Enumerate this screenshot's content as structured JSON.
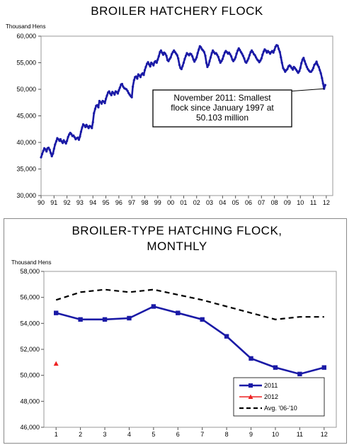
{
  "chart_data": [
    {
      "type": "line",
      "title": "BROILER HATCHERY FLOCK",
      "ylabel": "Thousand Hens",
      "ylim": [
        30000,
        60000
      ],
      "yticks": [
        "30,000",
        "35,000",
        "40,000",
        "45,000",
        "50,000",
        "55,000",
        "60,000"
      ],
      "yticks_values": [
        30000,
        35000,
        40000,
        45000,
        50000,
        55000,
        60000
      ],
      "xticks": [
        "90",
        "91",
        "92",
        "93",
        "94",
        "95",
        "96",
        "97",
        "98",
        "99",
        "00",
        "01",
        "02",
        "03",
        "04",
        "05",
        "06",
        "07",
        "08",
        "09",
        "10",
        "11",
        "12"
      ],
      "xlim": [
        1990,
        2012.5
      ],
      "grid": false,
      "annotation": {
        "lines": [
          "November 2011: Smallest",
          "flock since January 1997 at",
          "50.103 million"
        ],
        "points_to": [
          2011.83,
          50103
        ]
      },
      "series": [
        {
          "color": "#1a1aa6",
          "x": [
            1990.0,
            1990.08,
            1990.17,
            1990.25,
            1990.33,
            1990.42,
            1990.5,
            1990.58,
            1990.67,
            1990.75,
            1990.83,
            1990.92,
            1991.0,
            1991.08,
            1991.17,
            1991.25,
            1991.33,
            1991.42,
            1991.5,
            1991.58,
            1991.67,
            1991.75,
            1991.83,
            1991.92,
            1992.0,
            1992.08,
            1992.17,
            1992.25,
            1992.33,
            1992.42,
            1992.5,
            1992.58,
            1992.67,
            1992.75,
            1992.83,
            1992.92,
            1993.0,
            1993.08,
            1993.17,
            1993.25,
            1993.33,
            1993.42,
            1993.5,
            1993.58,
            1993.67,
            1993.75,
            1993.83,
            1993.92,
            1994.0,
            1994.08,
            1994.17,
            1994.25,
            1994.33,
            1994.42,
            1994.5,
            1994.58,
            1994.67,
            1994.75,
            1994.83,
            1994.92,
            1995.0,
            1995.08,
            1995.17,
            1995.25,
            1995.33,
            1995.42,
            1995.5,
            1995.58,
            1995.67,
            1995.75,
            1995.83,
            1995.92,
            1996.0,
            1996.08,
            1996.17,
            1996.25,
            1996.33,
            1996.42,
            1996.5,
            1996.58,
            1996.67,
            1996.75,
            1996.83,
            1996.92,
            1997.0,
            1997.08,
            1997.17,
            1997.25,
            1997.33,
            1997.42,
            1997.5,
            1997.58,
            1997.67,
            1997.75,
            1997.83,
            1997.92,
            1998.0,
            1998.08,
            1998.17,
            1998.25,
            1998.33,
            1998.42,
            1998.5,
            1998.58,
            1998.67,
            1998.75,
            1998.83,
            1998.92,
            1999.0,
            1999.08,
            1999.17,
            1999.25,
            1999.33,
            1999.42,
            1999.5,
            1999.58,
            1999.67,
            1999.75,
            1999.83,
            1999.92,
            2000.0,
            2000.08,
            2000.17,
            2000.25,
            2000.33,
            2000.42,
            2000.5,
            2000.58,
            2000.67,
            2000.75,
            2000.83,
            2000.92,
            2001.0,
            2001.08,
            2001.17,
            2001.25,
            2001.33,
            2001.42,
            2001.5,
            2001.58,
            2001.67,
            2001.75,
            2001.83,
            2001.92,
            2002.0,
            2002.08,
            2002.17,
            2002.25,
            2002.33,
            2002.42,
            2002.5,
            2002.58,
            2002.67,
            2002.75,
            2002.83,
            2002.92,
            2003.0,
            2003.08,
            2003.17,
            2003.25,
            2003.33,
            2003.42,
            2003.5,
            2003.58,
            2003.67,
            2003.75,
            2003.83,
            2003.92,
            2004.0,
            2004.08,
            2004.17,
            2004.25,
            2004.33,
            2004.42,
            2004.5,
            2004.58,
            2004.67,
            2004.75,
            2004.83,
            2004.92,
            2005.0,
            2005.08,
            2005.17,
            2005.25,
            2005.33,
            2005.42,
            2005.5,
            2005.58,
            2005.67,
            2005.75,
            2005.83,
            2005.92,
            2006.0,
            2006.08,
            2006.17,
            2006.25,
            2006.33,
            2006.42,
            2006.5,
            2006.58,
            2006.67,
            2006.75,
            2006.83,
            2006.92,
            2007.0,
            2007.08,
            2007.17,
            2007.25,
            2007.33,
            2007.42,
            2007.5,
            2007.58,
            2007.67,
            2007.75,
            2007.83,
            2007.92,
            2008.0,
            2008.08,
            2008.17,
            2008.25,
            2008.33,
            2008.42,
            2008.5,
            2008.58,
            2008.67,
            2008.75,
            2008.83,
            2008.92,
            2009.0,
            2009.08,
            2009.17,
            2009.25,
            2009.33,
            2009.42,
            2009.5,
            2009.58,
            2009.67,
            2009.75,
            2009.83,
            2009.92,
            2010.0,
            2010.08,
            2010.17,
            2010.25,
            2010.33,
            2010.42,
            2010.5,
            2010.58,
            2010.67,
            2010.75,
            2010.83,
            2010.92,
            2011.0,
            2011.08,
            2011.17,
            2011.25,
            2011.33,
            2011.42,
            2011.5,
            2011.58,
            2011.67,
            2011.75,
            2011.83,
            2011.92
          ],
          "y": [
            37200,
            37800,
            38400,
            38900,
            38700,
            38300,
            38900,
            39000,
            38600,
            38000,
            37400,
            37900,
            38800,
            39600,
            40200,
            40800,
            40600,
            40300,
            40600,
            40200,
            39900,
            40400,
            40100,
            39800,
            40300,
            41000,
            41500,
            41800,
            41600,
            41200,
            41300,
            41000,
            40600,
            40800,
            40900,
            40500,
            41100,
            42000,
            42800,
            43400,
            43200,
            42900,
            43300,
            43000,
            42700,
            43100,
            43000,
            42700,
            43800,
            45500,
            46300,
            46900,
            47000,
            46600,
            47800,
            47600,
            47300,
            47800,
            47700,
            47400,
            48200,
            48800,
            49400,
            49600,
            49200,
            48900,
            49500,
            49300,
            49000,
            49600,
            49500,
            49200,
            49800,
            50300,
            50900,
            51000,
            50500,
            50200,
            50100,
            50000,
            49700,
            49300,
            49000,
            48700,
            48500,
            50500,
            51700,
            52300,
            52400,
            52000,
            52800,
            52600,
            52300,
            52800,
            53000,
            52700,
            53600,
            54200,
            54800,
            55100,
            54700,
            54300,
            55000,
            54800,
            54500,
            55100,
            55300,
            55000,
            55600,
            56200,
            57000,
            57300,
            56900,
            56500,
            56900,
            56700,
            56300,
            55500,
            55300,
            55700,
            56000,
            56600,
            57000,
            57300,
            57000,
            56700,
            56400,
            55800,
            54600,
            54000,
            53800,
            54400,
            55000,
            55700,
            56300,
            56800,
            56600,
            56400,
            56700,
            56600,
            56200,
            55600,
            55200,
            55600,
            56000,
            56800,
            57500,
            58100,
            57900,
            57500,
            57300,
            57000,
            56300,
            55000,
            54200,
            54600,
            55300,
            56000,
            56800,
            57300,
            57000,
            56700,
            56800,
            56500,
            56100,
            55500,
            55000,
            55300,
            55700,
            56300,
            56900,
            57200,
            57000,
            56700,
            56900,
            56600,
            56200,
            55600,
            55300,
            55600,
            56000,
            56700,
            57300,
            57700,
            57400,
            57000,
            56700,
            56300,
            55800,
            55200,
            55000,
            55400,
            55800,
            56400,
            57000,
            57300,
            57000,
            56600,
            56400,
            56000,
            55600,
            55400,
            55100,
            55400,
            55800,
            56500,
            57100,
            57500,
            57300,
            56900,
            57200,
            57000,
            56700,
            57000,
            57200,
            56900,
            57400,
            58000,
            58300,
            58200,
            57600,
            57000,
            56000,
            55000,
            54000,
            53700,
            53300,
            53600,
            53800,
            54300,
            54500,
            54300,
            54000,
            53700,
            54200,
            54000,
            53700,
            53400,
            53100,
            53400,
            54000,
            54900,
            55600,
            55900,
            55300,
            54700,
            54200,
            53800,
            53500,
            53300,
            53300,
            53600,
            54000,
            54600,
            54800,
            55200,
            54600,
            54200,
            53600,
            53000,
            52100,
            51100,
            50103,
            50800
          ]
        }
      ]
    },
    {
      "type": "line",
      "title": "BROILER-TYPE HATCHING FLOCK, MONTHLY",
      "title_lines": [
        "BROILER-TYPE HATCHING FLOCK,",
        "MONTHLY"
      ],
      "ylabel": "Thousand Hens",
      "categories": [
        "1",
        "2",
        "3",
        "4",
        "5",
        "6",
        "7",
        "8",
        "9",
        "10",
        "11",
        "12"
      ],
      "ylim": [
        46000,
        58000
      ],
      "yticks": [
        "46,000",
        "48,000",
        "50,000",
        "52,000",
        "54,000",
        "56,000",
        "58,000"
      ],
      "yticks_values": [
        46000,
        48000,
        50000,
        52000,
        54000,
        56000,
        58000
      ],
      "grid": false,
      "legend_position": "bottom-right",
      "series": [
        {
          "name": "2011",
          "color": "#1a1aa6",
          "style": "solid-square",
          "values": [
            54800,
            54300,
            54300,
            54400,
            55300,
            54800,
            54300,
            53000,
            51300,
            50600,
            50100,
            50600
          ]
        },
        {
          "name": "2012",
          "color": "#ee2222",
          "style": "triangle",
          "values": [
            50900,
            null,
            null,
            null,
            null,
            null,
            null,
            null,
            null,
            null,
            null,
            null
          ]
        },
        {
          "name": "Avg. '06-'10",
          "color": "#000000",
          "style": "dashed",
          "values": [
            55800,
            56400,
            56600,
            56400,
            56600,
            56200,
            55800,
            55300,
            54800,
            54300,
            54500,
            54500
          ]
        }
      ]
    }
  ]
}
